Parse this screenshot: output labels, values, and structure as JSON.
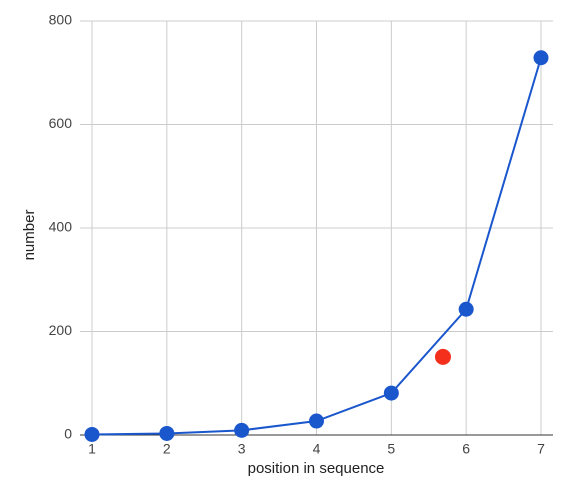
{
  "chart_data": {
    "type": "line",
    "xlabel": "position in sequence",
    "ylabel": "number",
    "x": [
      1,
      2,
      3,
      4,
      5,
      6,
      7
    ],
    "series": [
      {
        "color": "#1a56cc",
        "values": [
          1,
          3,
          9,
          27,
          81,
          243,
          729
        ]
      }
    ],
    "highlight": {
      "x": 5.69,
      "y": 151,
      "color": "#f4301c"
    },
    "xlim": [
      1,
      7
    ],
    "xticks": [
      1,
      2,
      3,
      4,
      5,
      6,
      7
    ],
    "ylim": [
      0,
      800
    ],
    "yticks": [
      0,
      200,
      400,
      600,
      800
    ],
    "grid": true
  }
}
